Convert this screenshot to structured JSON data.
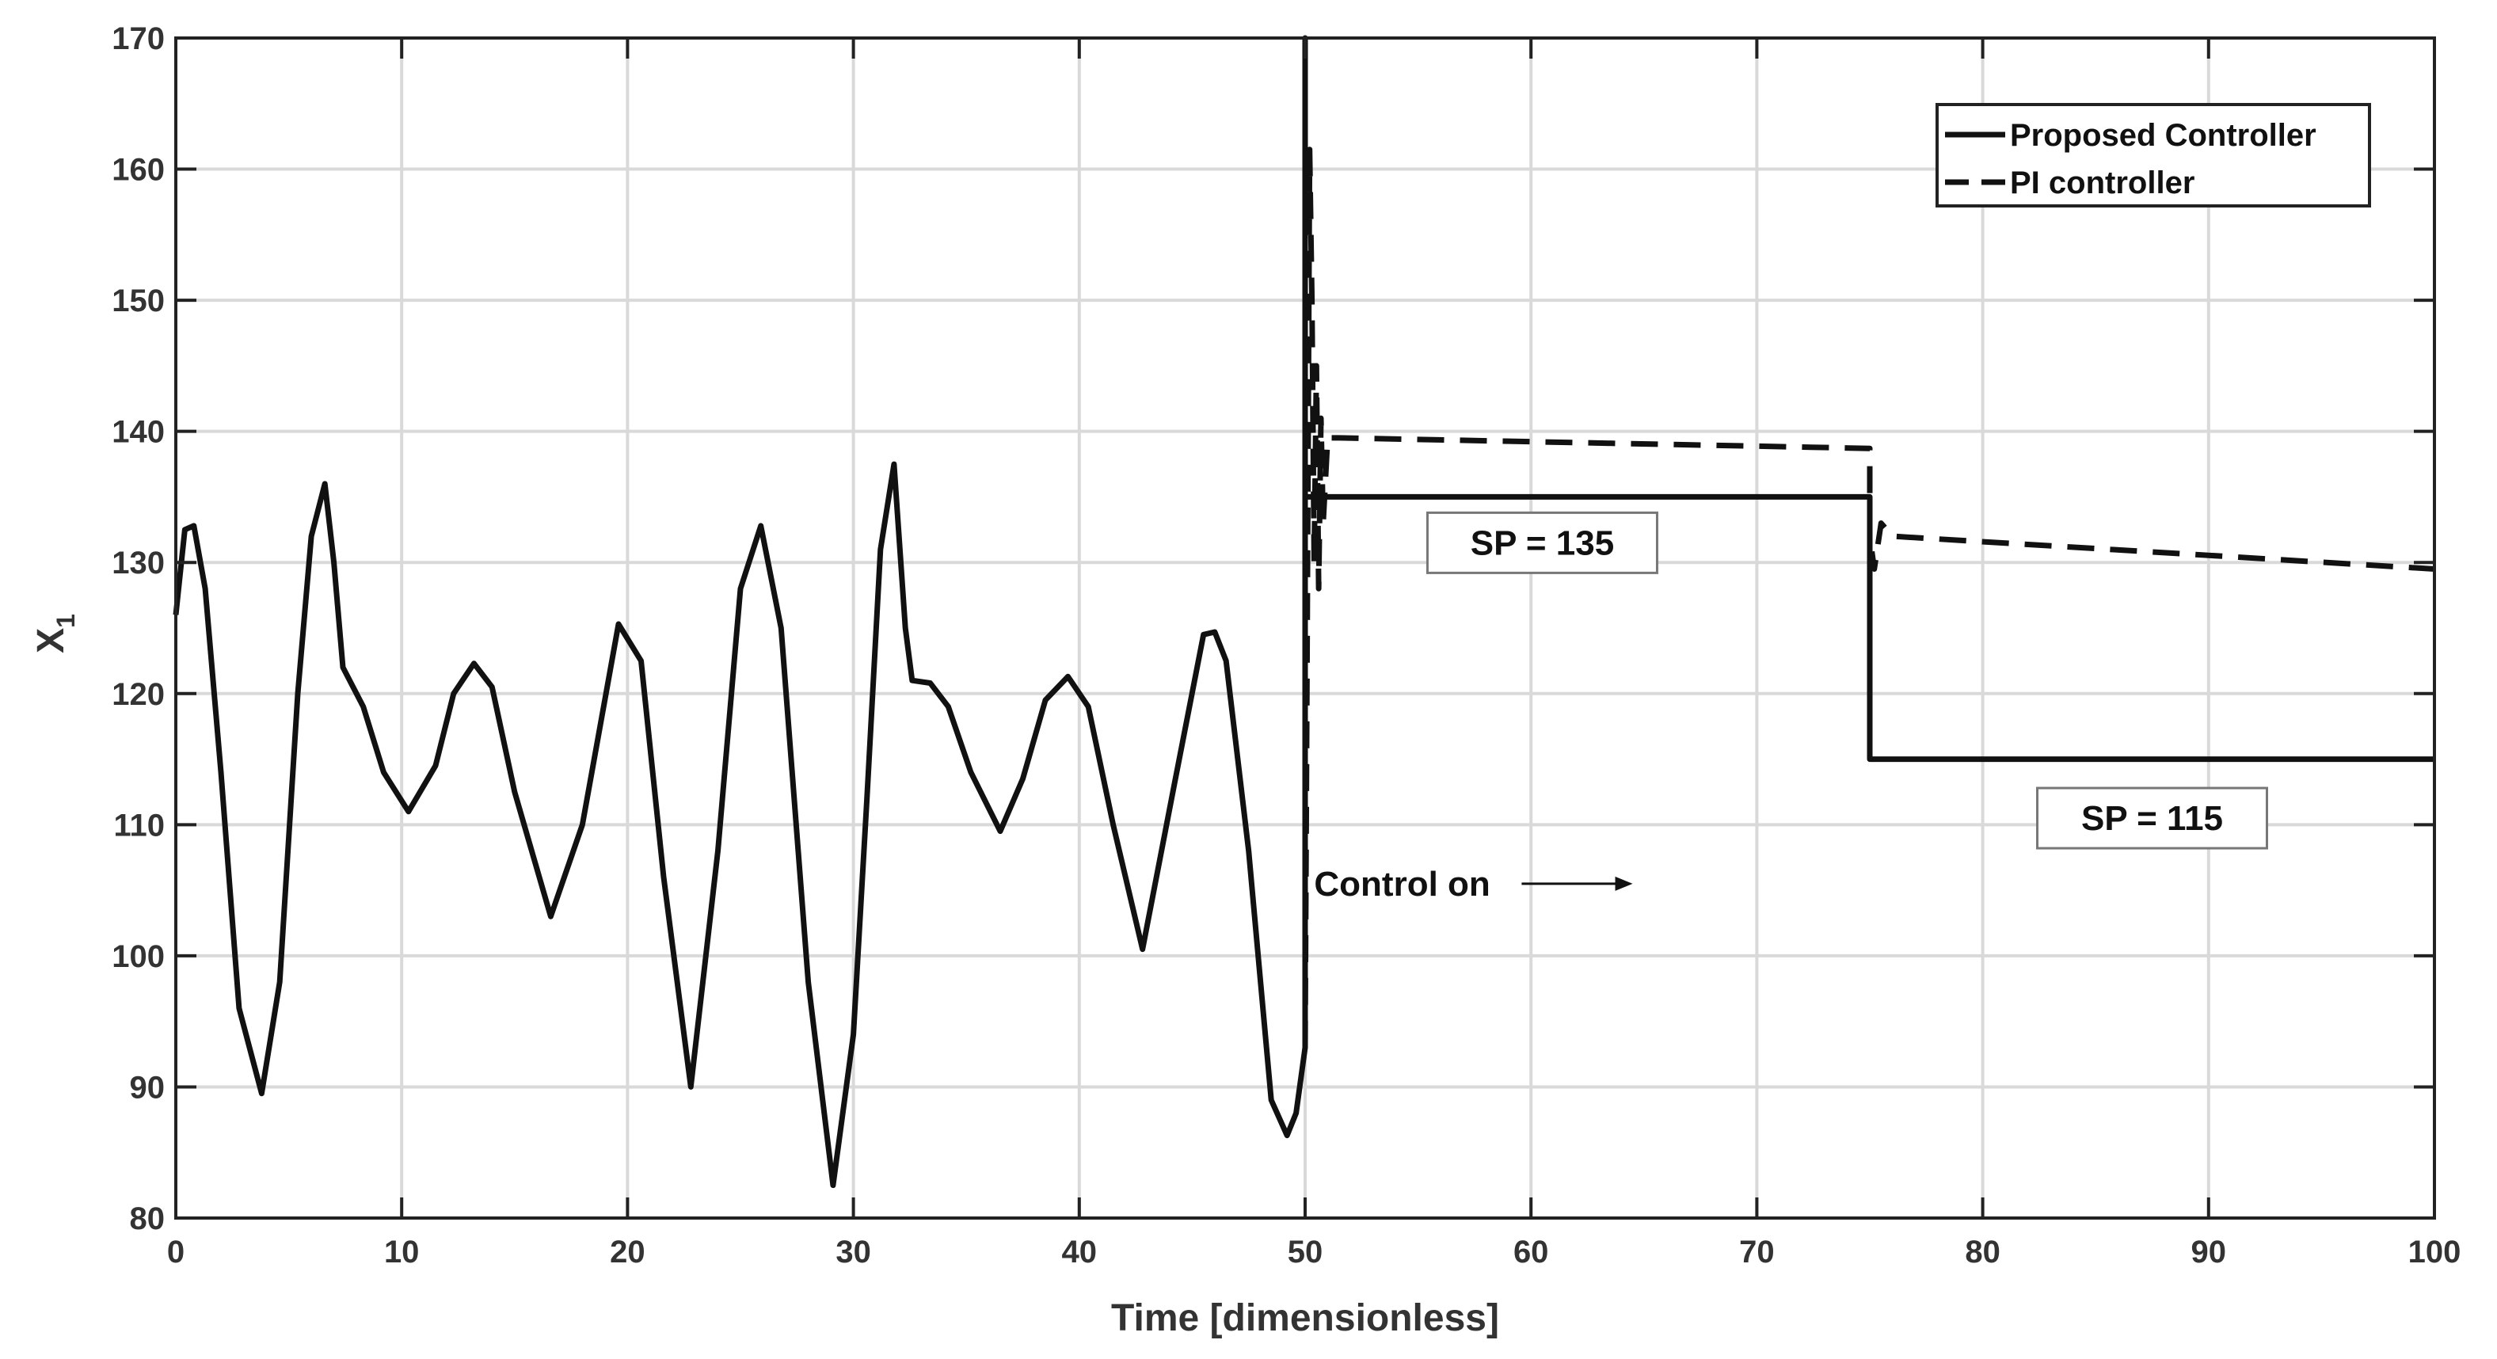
{
  "chart_data": {
    "type": "line",
    "xlabel": "Time [dimensionless]",
    "ylabel": "X",
    "ylabel_subscript": "1",
    "xlim": [
      0,
      100
    ],
    "ylim": [
      80,
      170
    ],
    "xticks": [
      0,
      10,
      20,
      30,
      40,
      50,
      60,
      70,
      80,
      90,
      100
    ],
    "yticks": [
      80,
      90,
      100,
      110,
      120,
      130,
      140,
      150,
      160,
      170
    ],
    "grid": true,
    "legend_position": "top-right",
    "series": [
      {
        "name": "Proposed Controller",
        "style": "solid",
        "color": "#111111",
        "x": [
          0,
          0.4,
          0.8,
          1.3,
          2.0,
          2.8,
          3.8,
          4.6,
          5.4,
          6.0,
          6.6,
          7.0,
          7.4,
          8.3,
          9.2,
          10.3,
          11.5,
          12.3,
          13.2,
          14.0,
          15.0,
          16.6,
          18.0,
          19.6,
          20.6,
          21.6,
          22.8,
          24.0,
          25.0,
          25.9,
          26.8,
          28.0,
          29.1,
          30.0,
          30.6,
          31.2,
          31.8,
          32.3,
          32.6,
          33.4,
          34.2,
          35.2,
          36.5,
          37.5,
          38.5,
          39.5,
          40.4,
          41.5,
          42.8,
          44.2,
          45.5,
          46.0,
          46.5,
          47.5,
          48.5,
          49.2,
          49.6,
          50.0,
          50.0,
          50.0,
          75.0,
          75.0,
          100.0
        ],
        "y": [
          126,
          132.5,
          132.8,
          128,
          114,
          96,
          89.5,
          98,
          120,
          132,
          136,
          130,
          122,
          119,
          114,
          111,
          114.5,
          120,
          122.3,
          120.5,
          112.5,
          103,
          110,
          125.3,
          122.5,
          106,
          90,
          108,
          128,
          132.8,
          125,
          98,
          82.5,
          94,
          112,
          131,
          137.5,
          125,
          121,
          120.8,
          119,
          114,
          109.5,
          113.5,
          119.5,
          121.3,
          119,
          110,
          100.5,
          113,
          124.5,
          124.7,
          122.5,
          108,
          89,
          86.3,
          88,
          93,
          170,
          135,
          135,
          115,
          115
        ]
      },
      {
        "name": "PI controller",
        "style": "dashed",
        "color": "#111111",
        "x": [
          50.0,
          50.2,
          50.3,
          50.4,
          50.5,
          50.6,
          50.7,
          50.8,
          51.0,
          51.5,
          75.0,
          75.0,
          75.2,
          75.5,
          76.0,
          100.0
        ],
        "y": [
          93,
          161.5,
          150,
          130,
          145,
          128,
          141,
          133,
          139.5,
          139.5,
          138.7,
          132,
          129.5,
          133,
          132,
          129.5
        ]
      }
    ],
    "annotations": [
      {
        "text": "SP = 135",
        "x": 60.5,
        "y": 131.5,
        "boxed": true
      },
      {
        "text": "SP = 115",
        "x": 87.5,
        "y": 110.5,
        "boxed": true
      },
      {
        "text": "Control on",
        "x": 50.4,
        "y": 105.5,
        "boxed": false,
        "arrow_to": [
          64.5,
          105.5
        ]
      }
    ]
  }
}
